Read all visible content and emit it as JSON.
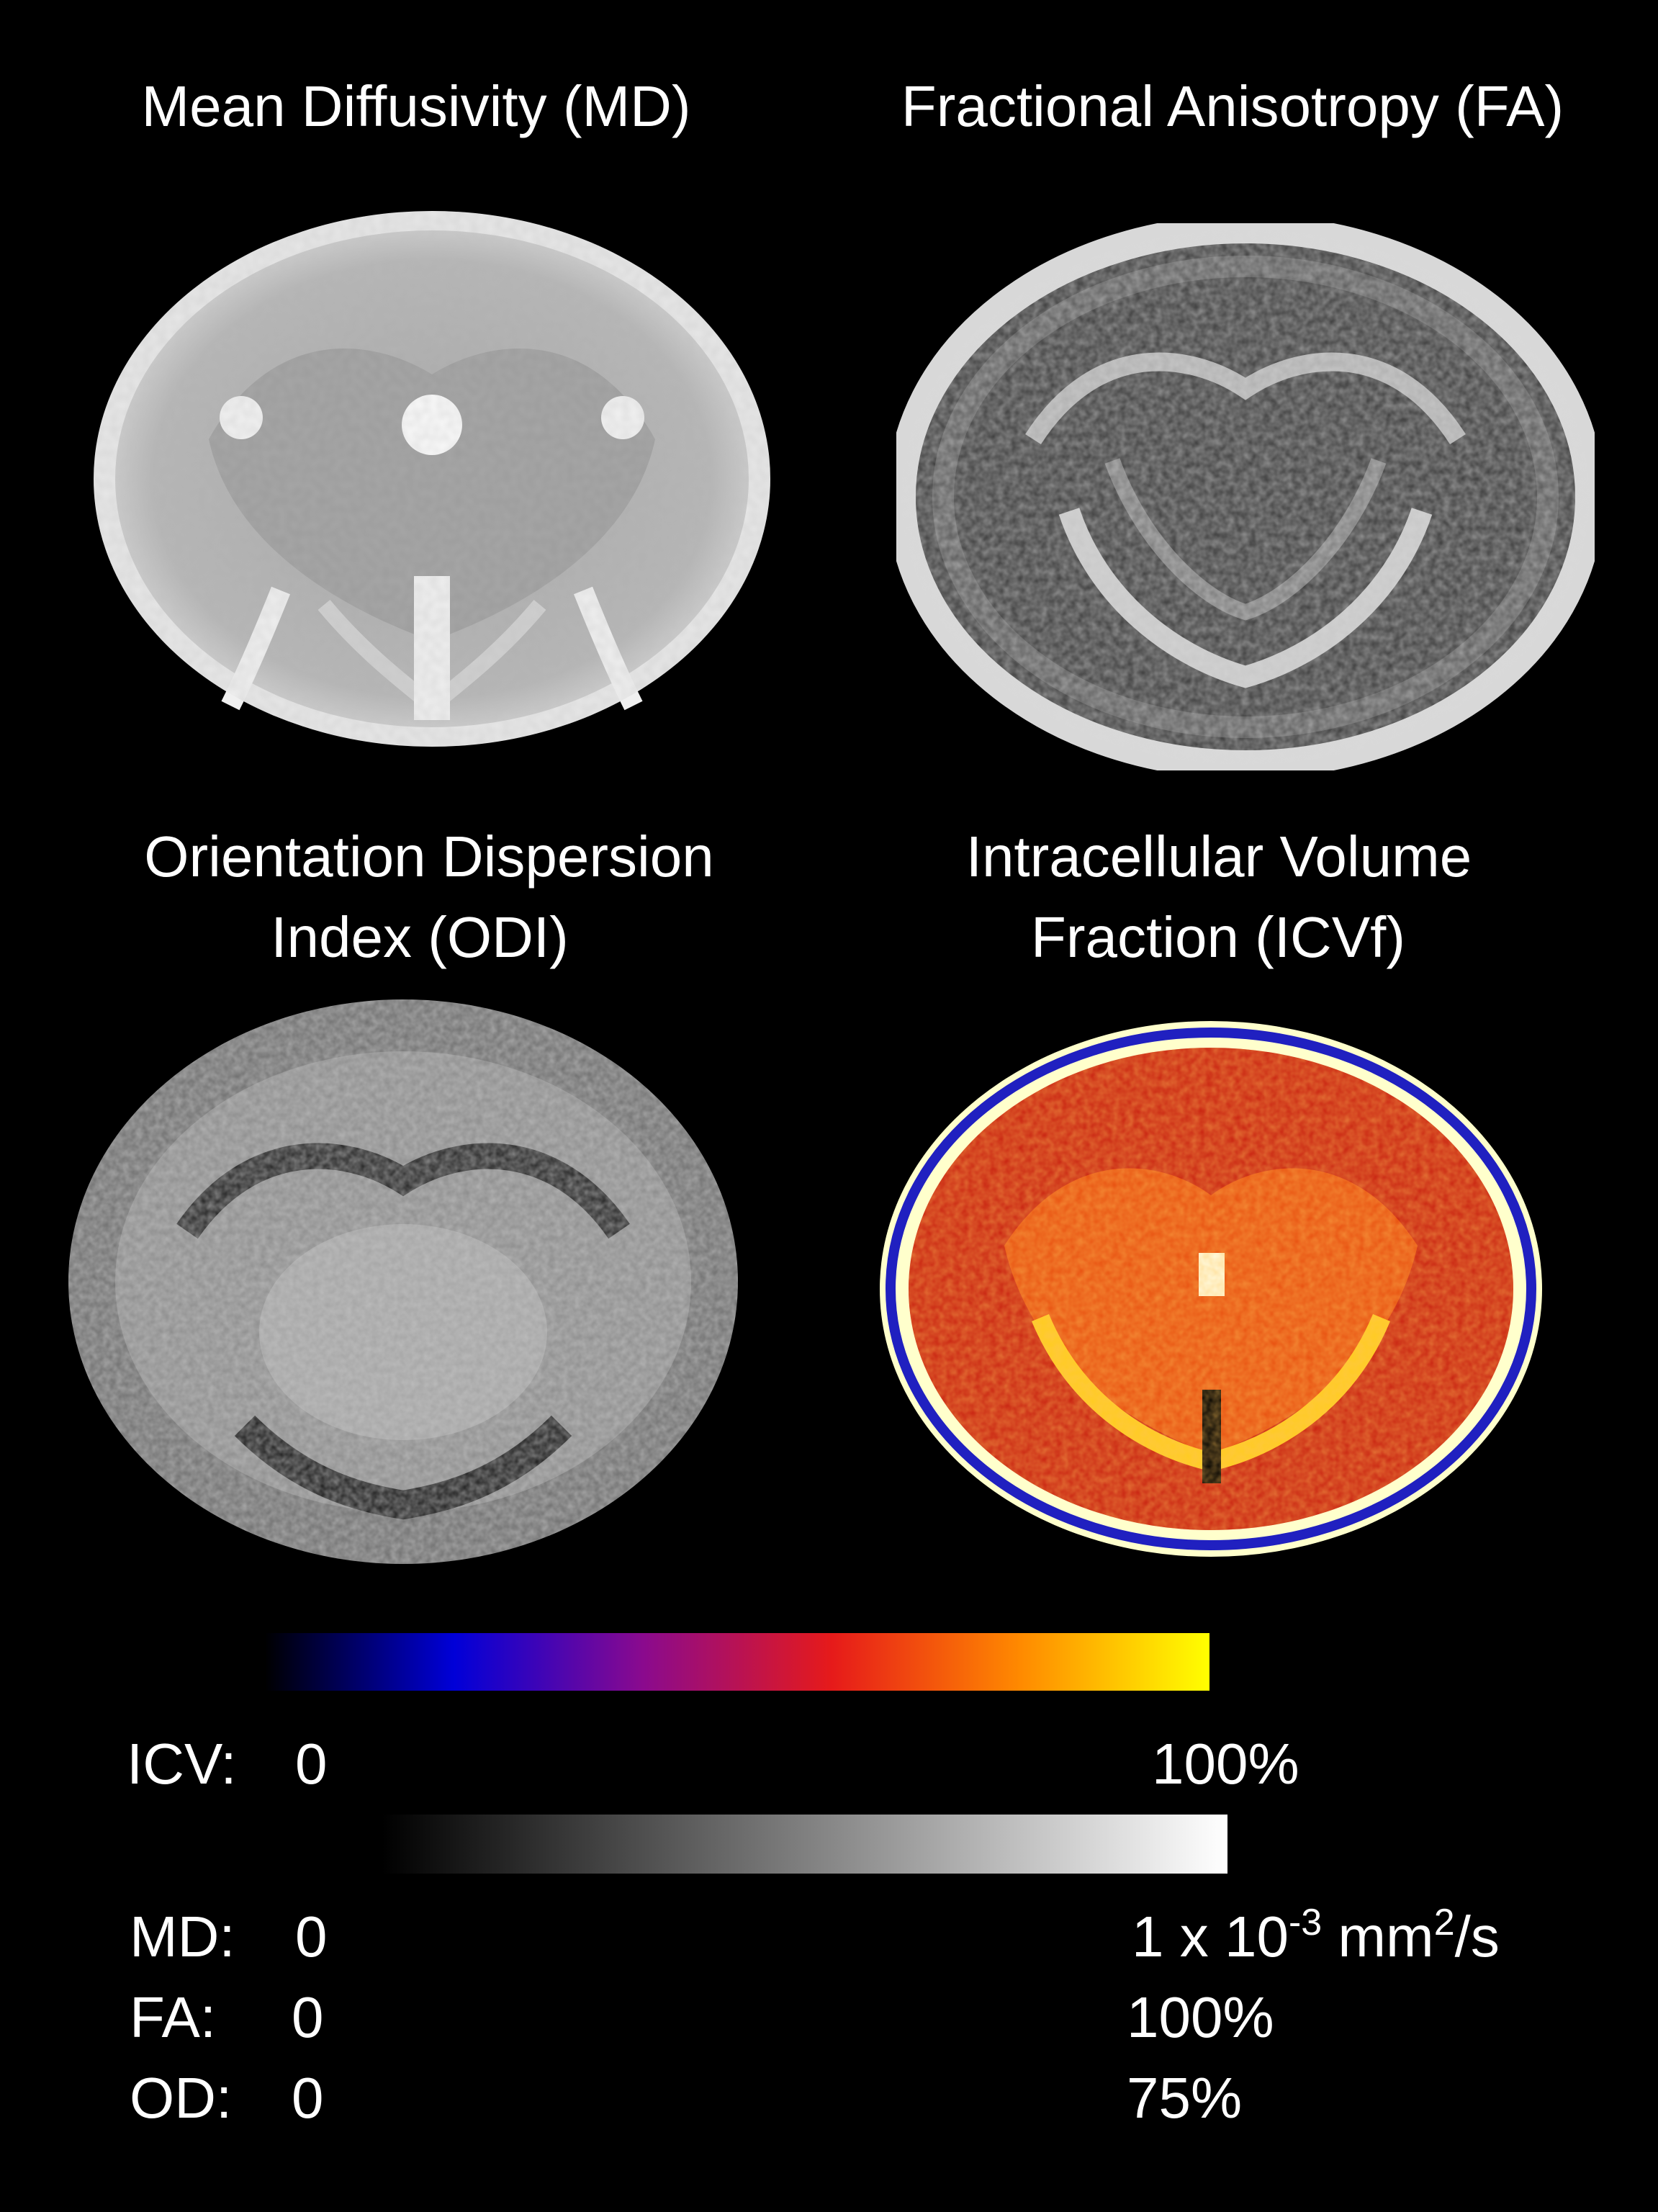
{
  "panels": {
    "md": {
      "title": "Mean Diffusivity (MD)"
    },
    "fa": {
      "title": "Fractional Anisotropy (FA)"
    },
    "odi": {
      "title_line1": "Orientation Dispersion",
      "title_line2": "Index (ODI)"
    },
    "icvf": {
      "title_line1": "Intracellular Volume",
      "title_line2": "Fraction (ICVf)"
    }
  },
  "color_scale": {
    "label": "ICV:",
    "min": "0",
    "max": "100%",
    "colors": [
      "#000000",
      "#0000d8",
      "#8a0a8e",
      "#e61a1a",
      "#ff8a00",
      "#ffff00"
    ]
  },
  "gray_scale": {
    "colors": [
      "#000000",
      "#ffffff"
    ],
    "rows": [
      {
        "label": "MD:",
        "min": "0",
        "max_main": "1 x 10",
        "max_exp": "-3",
        "max_unit": " mm",
        "max_exp2": "2",
        "max_tail": "/s"
      },
      {
        "label": "FA:",
        "min": "0",
        "max": "100%"
      },
      {
        "label": "OD:",
        "min": "0",
        "max": "75%"
      }
    ]
  }
}
